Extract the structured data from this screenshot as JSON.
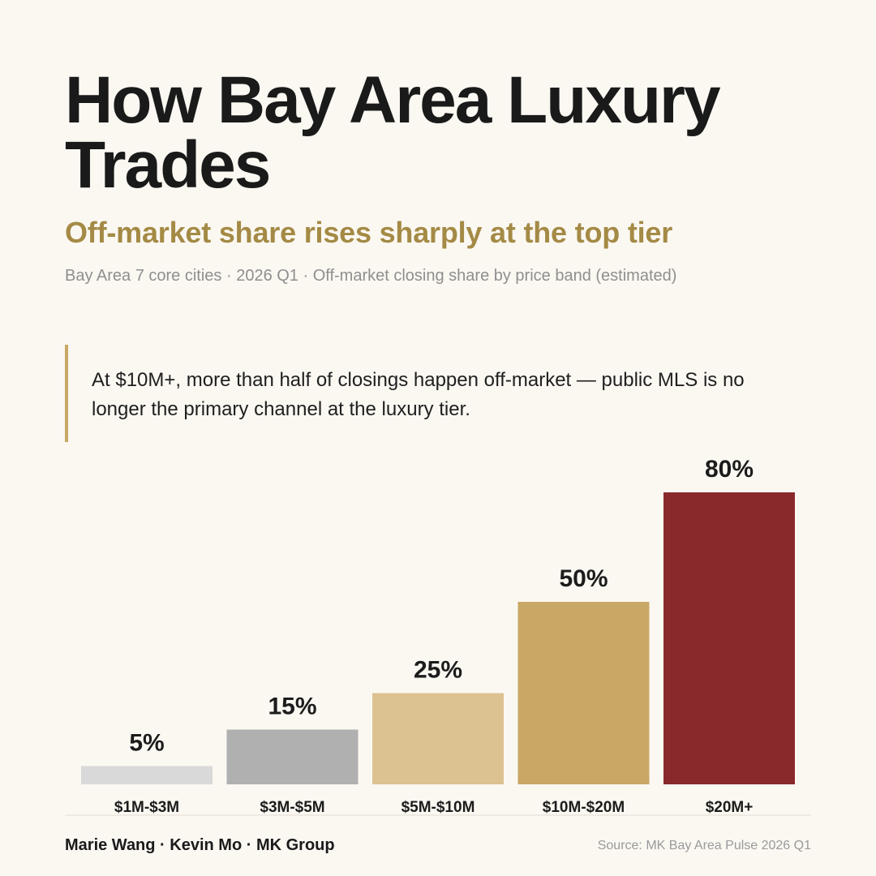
{
  "header": {
    "title": "How Bay Area Luxury Trades",
    "subtitle": "Off-market share rises sharply at the top tier",
    "meta": "Bay Area 7 core cities · 2026 Q1 · Off-market closing share by price band (estimated)"
  },
  "callout": {
    "text": "At $10M+, more than half of closings happen off-market — public MLS is no longer the primary channel at the luxury tier."
  },
  "chart_data": {
    "type": "bar",
    "categories": [
      "$1M-$3M",
      "$3M-$5M",
      "$5M-$10M",
      "$10M-$20M",
      "$20M+"
    ],
    "values": [
      5,
      15,
      25,
      50,
      80
    ],
    "value_labels": [
      "5%",
      "15%",
      "25%",
      "50%",
      "80%"
    ],
    "unit": "%",
    "ylim": [
      0,
      100
    ],
    "grid": false,
    "colors": [
      "#d9d9d9",
      "#b0b0b0",
      "#dcc290",
      "#c9a865",
      "#8a292c"
    ]
  },
  "footer": {
    "authors": "Marie Wang · Kevin Mo · MK Group",
    "source": "Source: MK Bay Area Pulse 2026 Q1"
  }
}
